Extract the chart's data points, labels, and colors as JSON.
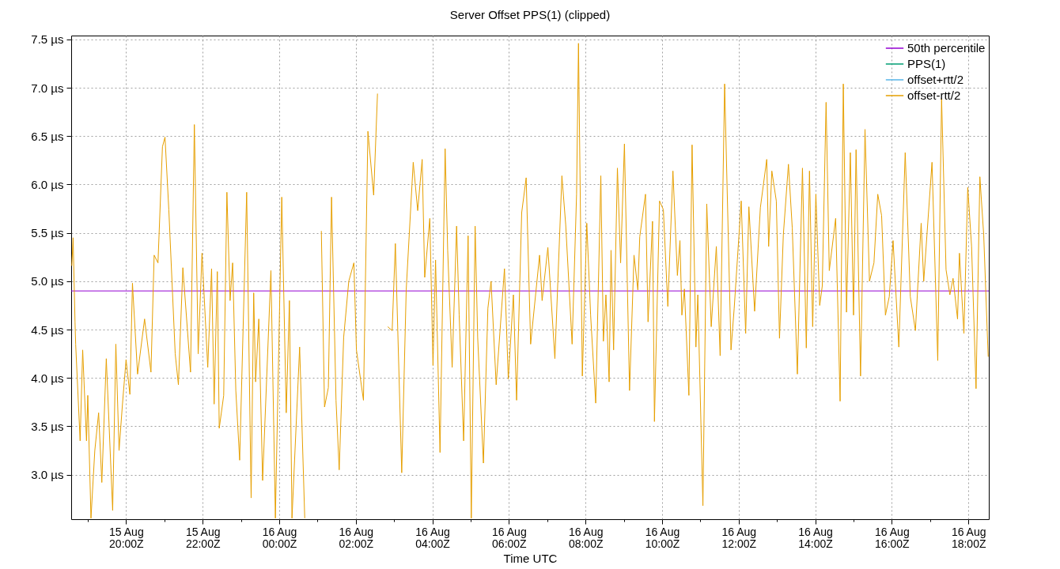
{
  "chart_data": {
    "type": "line",
    "title": "Server Offset PPS(1) (clipped)",
    "xlabel": "Time UTC",
    "xlim": [
      "--08-15T18:34",
      "--08-16T18:32"
    ],
    "xticks": [
      {
        "value": "--08-15T19:00",
        "label": null
      },
      {
        "value": "--08-15T20:00",
        "label": "15 Aug\n20:00Z"
      },
      {
        "value": "--08-15T21:00",
        "label": null
      },
      {
        "value": "--08-15T22:00",
        "label": "15 Aug\n22:00Z"
      },
      {
        "value": "--08-15T23:00",
        "label": null
      },
      {
        "value": "--08-16T00:00",
        "label": "16 Aug\n00:00Z"
      },
      {
        "value": "--08-16T01:00",
        "label": null
      },
      {
        "value": "--08-16T02:00",
        "label": "16 Aug\n02:00Z"
      },
      {
        "value": "--08-16T03:00",
        "label": null
      },
      {
        "value": "--08-16T04:00",
        "label": "16 Aug\n04:00Z"
      },
      {
        "value": "--08-16T05:00",
        "label": null
      },
      {
        "value": "--08-16T06:00",
        "label": "16 Aug\n06:00Z"
      },
      {
        "value": "--08-16T07:00",
        "label": null
      },
      {
        "value": "--08-16T08:00",
        "label": "16 Aug\n08:00Z"
      },
      {
        "value": "--08-16T09:00",
        "label": null
      },
      {
        "value": "--08-16T10:00",
        "label": "16 Aug\n10:00Z"
      },
      {
        "value": "--08-16T11:00",
        "label": null
      },
      {
        "value": "--08-16T12:00",
        "label": "16 Aug\n12:00Z"
      },
      {
        "value": "--08-16T13:00",
        "label": null
      },
      {
        "value": "--08-16T14:00",
        "label": "16 Aug\n14:00Z"
      },
      {
        "value": "--08-16T15:00",
        "label": null
      },
      {
        "value": "--08-16T16:00",
        "label": "16 Aug\n16:00Z"
      },
      {
        "value": "--08-16T17:00",
        "label": null
      },
      {
        "value": "--08-16T18:00",
        "label": "16 Aug\n18:00Z"
      }
    ],
    "ylim": [
      2.54,
      7.54
    ],
    "yticks": [
      {
        "value": 3,
        "label": "3.0 µs"
      },
      {
        "value": 3.5,
        "label": "3.5 µs"
      },
      {
        "value": 4,
        "label": "4.0 µs"
      },
      {
        "value": 4.5,
        "label": "4.5 µs"
      },
      {
        "value": 5,
        "label": "5.0 µs"
      },
      {
        "value": 5.5,
        "label": "5.5 µs"
      },
      {
        "value": 6,
        "label": "6.0 µs"
      },
      {
        "value": 6.5,
        "label": "6.5 µs"
      },
      {
        "value": 7,
        "label": "7.0 µs"
      },
      {
        "value": 7.5,
        "label": "7.5 µs"
      }
    ],
    "grid": true,
    "legend": "top right",
    "series": [
      {
        "name": "50th percentile",
        "color": "#9400d3",
        "x": [
          "--08-15T18:34",
          "--08-16T18:32"
        ],
        "values": [
          4.9,
          4.9
        ]
      },
      {
        "name": "PPS(1)",
        "color": "#009e73"
      },
      {
        "name": "offset+rtt/2",
        "color": "#56b4e9"
      },
      {
        "name": "offset-rtt/2",
        "color": "#e69f00",
        "x": [
          "--08-15T18:35",
          "--08-15T18:37",
          "--08-15T18:40",
          "--08-15T18:41",
          "--08-15T18:48",
          "--08-15T18:52",
          "--08-15T18:58",
          "--08-15T19:00",
          "--08-15T19:05",
          "--08-15T19:11",
          "--08-15T19:17",
          "--08-15T19:22",
          "--08-15T19:29",
          "--08-15T19:39",
          "--08-15T19:44",
          "--08-15T19:49",
          "--08-15T19:54",
          "--08-15T20:00",
          "--08-15T20:06",
          "--08-15T20:10",
          "--08-15T20:18",
          "--08-15T20:29",
          "--08-15T20:39",
          "--08-15T20:44",
          "--08-15T20:50",
          "--08-15T20:57",
          "--08-15T21:01",
          "--08-15T21:07",
          "--08-15T21:17",
          "--08-15T21:22",
          "--08-15T21:29",
          "--08-15T21:41",
          "--08-15T21:47",
          "--08-15T21:53",
          "--08-15T21:59",
          "--08-15T22:08",
          "--08-15T22:14",
          "--08-15T22:18",
          "--08-15T22:23",
          "--08-15T22:26",
          "--08-15T22:33",
          "--08-15T22:38",
          "--08-15T22:43",
          "--08-15T22:47",
          "--08-15T22:52",
          "--08-15T22:58",
          "--08-15T23:09",
          "--08-15T23:16",
          "--08-15T23:20",
          "--08-15T23:23",
          "--08-15T23:28",
          "--08-15T23:34",
          "--08-15T23:47",
          "--08-15T23:54",
          "--08-16T00:04",
          "--08-16T00:11",
          "--08-16T00:16",
          "--08-16T00:20",
          "--08-16T00:32",
          "--08-16T00:40",
          "--08-16T00:48",
          "--08-16T01:00",
          "--08-16T01:06",
          "--08-16T01:11",
          "--08-16T01:17",
          "--08-16T01:22",
          "--08-16T01:29",
          "--08-16T01:34",
          "--08-16T01:41",
          "--08-16T01:49",
          "--08-16T01:57",
          "--08-16T02:01",
          "--08-16T02:12",
          "--08-16T02:19",
          "--08-16T02:28",
          "--08-16T02:34",
          "--08-16T02:40",
          "--08-16T02:50",
          "--08-16T02:57",
          "--08-16T03:02",
          "--08-16T03:12",
          "--08-16T03:19",
          "--08-16T03:30",
          "--08-16T03:37",
          "--08-16T03:44",
          "--08-16T03:48",
          "--08-16T03:56",
          "--08-16T04:01",
          "--08-16T04:05",
          "--08-16T04:12",
          "--08-16T04:20",
          "--08-16T04:24",
          "--08-16T04:31",
          "--08-16T04:38",
          "--08-16T04:42",
          "--08-16T04:49",
          "--08-16T04:56",
          "--08-16T05:01",
          "--08-16T05:07",
          "--08-16T05:11",
          "--08-16T05:20",
          "--08-16T05:27",
          "--08-16T05:32",
          "--08-16T05:40",
          "--08-16T05:53",
          "--08-16T05:59",
          "--08-16T06:07",
          "--08-16T06:12",
          "--08-16T06:20",
          "--08-16T06:27",
          "--08-16T06:34",
          "--08-16T06:48",
          "--08-16T06:52",
          "--08-16T07:01",
          "--08-16T07:12",
          "--08-16T07:23",
          "--08-16T07:29",
          "--08-16T07:39",
          "--08-16T07:46",
          "--08-16T07:49",
          "--08-16T07:55",
          "--08-16T08:02",
          "--08-16T08:08",
          "--08-16T08:16",
          "--08-16T08:24",
          "--08-16T08:28",
          "--08-16T08:32",
          "--08-16T08:37",
          "--08-16T08:40",
          "--08-16T08:44",
          "--08-16T08:50",
          "--08-16T08:55",
          "--08-16T09:01",
          "--08-16T09:09",
          "--08-16T09:16",
          "--08-16T09:22",
          "--08-16T09:25",
          "--08-16T09:34",
          "--08-16T09:38",
          "--08-16T09:45",
          "--08-16T09:48",
          "--08-16T09:56",
          "--08-16T10:02",
          "--08-16T10:09",
          "--08-16T10:17",
          "--08-16T10:24",
          "--08-16T10:28",
          "--08-16T10:31",
          "--08-16T10:35",
          "--08-16T10:42",
          "--08-16T10:47",
          "--08-16T10:53",
          "--08-16T10:56",
          "--08-16T11:04",
          "--08-16T11:10",
          "--08-16T11:17",
          "--08-16T11:25",
          "--08-16T11:31",
          "--08-16T11:38",
          "--08-16T11:48",
          "--08-16T11:53",
          "--08-16T12:04",
          "--08-16T12:11",
          "--08-16T12:16",
          "--08-16T12:25",
          "--08-16T12:34",
          "--08-16T12:44",
          "--08-16T12:47",
          "--08-16T12:52",
          "--08-16T12:59",
          "--08-16T13:04",
          "--08-16T13:10",
          "--08-16T13:18",
          "--08-16T13:24",
          "--08-16T13:32",
          "--08-16T13:40",
          "--08-16T13:46",
          "--08-16T13:51",
          "--08-16T13:56",
          "--08-16T14:01",
          "--08-16T14:07",
          "--08-16T14:11",
          "--08-16T14:17",
          "--08-16T14:22",
          "--08-16T14:32",
          "--08-16T14:39",
          "--08-16T14:44",
          "--08-16T14:49",
          "--08-16T14:55",
          "--08-16T15:00",
          "--08-16T15:04",
          "--08-16T15:11",
          "--08-16T15:18",
          "--08-16T15:25",
          "--08-16T15:32",
          "--08-16T15:38",
          "--08-16T15:44",
          "--08-16T15:50",
          "--08-16T15:56",
          "--08-16T16:02",
          "--08-16T16:11",
          "--08-16T16:21",
          "--08-16T16:29",
          "--08-16T16:37",
          "--08-16T16:46",
          "--08-16T16:50",
          "--08-16T17:03",
          "--08-16T17:12",
          "--08-16T17:18",
          "--08-16T17:25",
          "--08-16T17:31",
          "--08-16T17:36",
          "--08-16T17:43",
          "--08-16T17:46",
          "--08-16T17:53",
          "--08-16T17:59",
          "--08-16T18:05",
          "--08-16T18:12",
          "--08-16T18:18",
          "--08-16T18:24",
          "--08-16T18:31"
        ],
        "values": [
          5.16,
          5.45,
          4.58,
          4.35,
          3.35,
          4.29,
          3.35,
          3.82,
          2.55,
          3.25,
          3.64,
          2.92,
          4.2,
          2.63,
          4.35,
          3.25,
          3.7,
          4.19,
          3.83,
          4.98,
          4.04,
          4.61,
          4.06,
          5.27,
          5.19,
          6.39,
          6.49,
          5.74,
          4.25,
          3.93,
          5.14,
          4.06,
          6.62,
          4.25,
          5.29,
          4.11,
          5.13,
          3.73,
          5.1,
          3.48,
          3.82,
          5.92,
          4.8,
          5.19,
          3.87,
          3.15,
          5.92,
          2.76,
          4.88,
          3.96,
          4.61,
          2.94,
          5.11,
          2.55,
          5.87,
          3.64,
          4.8,
          2.55,
          4.32,
          2.55,
          null,
          null,
          5.52,
          3.7,
          3.9,
          5.87,
          3.77,
          3.05,
          4.42,
          5.0,
          5.19,
          4.29,
          3.77,
          6.55,
          5.89,
          6.94,
          null,
          4.53,
          4.49,
          5.39,
          3.02,
          4.91,
          6.23,
          5.73,
          6.26,
          5.04,
          5.65,
          4.13,
          5.22,
          3.23,
          6.37,
          5.32,
          4.11,
          5.57,
          4.65,
          3.35,
          5.47,
          2.55,
          5.57,
          4.42,
          3.12,
          4.72,
          5.0,
          3.93,
          5.13,
          3.99,
          4.86,
          3.77,
          5.71,
          6.07,
          4.35,
          5.27,
          4.8,
          5.35,
          4.2,
          6.09,
          5.58,
          4.35,
          5.9,
          7.46,
          4.02,
          5.6,
          4.65,
          3.74,
          6.09,
          4.38,
          4.86,
          3.96,
          5.32,
          4.29,
          6.17,
          5.19,
          6.42,
          3.87,
          5.27,
          4.91,
          5.46,
          5.9,
          4.58,
          5.62,
          3.55,
          5.83,
          5.74,
          4.74,
          6.14,
          5.06,
          5.42,
          4.65,
          4.92,
          3.82,
          6.41,
          4.32,
          4.86,
          2.68,
          5.8,
          4.53,
          5.36,
          4.23,
          7.04,
          4.29,
          4.72,
          5.83,
          4.46,
          5.77,
          4.69,
          5.76,
          6.26,
          5.36,
          6.14,
          5.83,
          4.41,
          5.48,
          6.21,
          5.55,
          4.04,
          6.17,
          4.31,
          6.14,
          4.53,
          5.9,
          4.75,
          4.95,
          6.85,
          5.11,
          5.65,
          3.76,
          7.04,
          4.68,
          6.33,
          4.65,
          6.36,
          4.02,
          6.57,
          5.0,
          5.19,
          5.9,
          5.68,
          4.65,
          4.84,
          5.42,
          4.32,
          6.33,
          4.84,
          4.49,
          5.6,
          5.0,
          6.23,
          4.18,
          6.89,
          5.12,
          4.86,
          5.03,
          4.61,
          5.29,
          4.46,
          5.97,
          5.36,
          3.89,
          6.08,
          5.48,
          4.22
        ]
      }
    ]
  }
}
